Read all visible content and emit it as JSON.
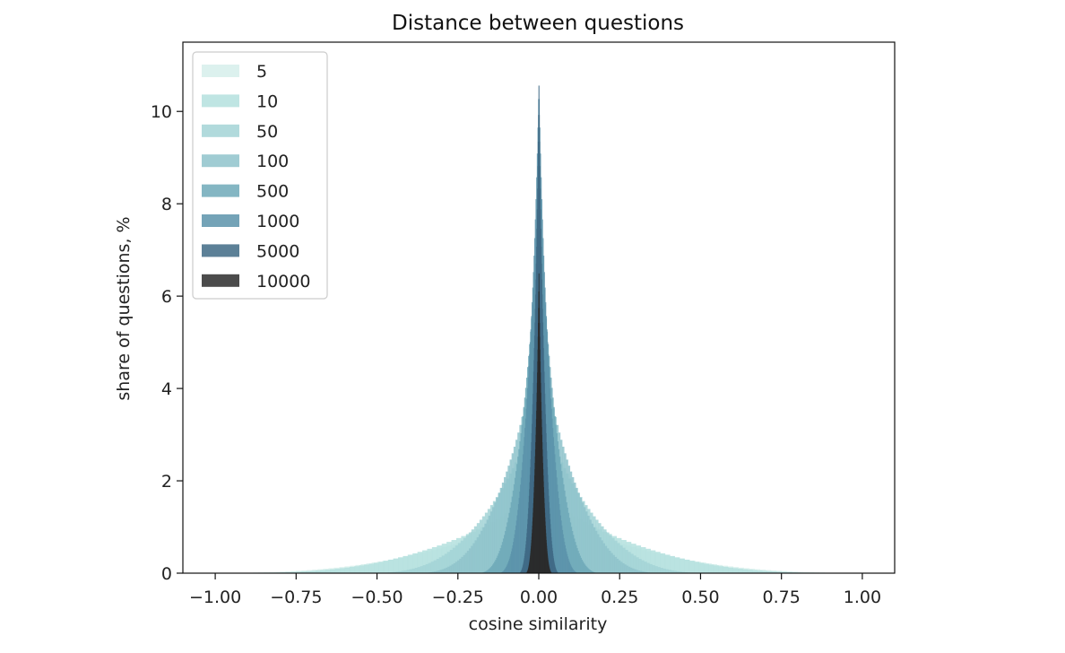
{
  "chart_data": {
    "type": "histogram",
    "title": "Distance between questions",
    "xlabel": "cosine similarity",
    "ylabel": "share of questions, %",
    "xlim": [
      -1.1,
      1.1
    ],
    "ylim": [
      0,
      11.5
    ],
    "xticks": [
      -1.0,
      -0.75,
      -0.5,
      -0.25,
      0.0,
      0.25,
      0.5,
      0.75,
      1.0
    ],
    "xtick_labels": [
      "−1.00",
      "−0.75",
      "−0.50",
      "−0.25",
      "0.00",
      "0.25",
      "0.50",
      "0.75",
      "1.00"
    ],
    "yticks": [
      0,
      2,
      4,
      6,
      8,
      10
    ],
    "ytick_labels": [
      "0",
      "2",
      "4",
      "6",
      "8",
      "10"
    ],
    "grid": false,
    "legend_position": "top-left",
    "distribution_shape": "symmetric peak centered at 0; narrower and taller as number of dimensions grows",
    "series": [
      {
        "name": "5",
        "color": "#d6eeeb",
        "peak_percent": 1.5,
        "x_range": [
          -1.0,
          1.0
        ]
      },
      {
        "name": "10",
        "color": "#b4e0de",
        "peak_percent": 1.9,
        "x_range": [
          -0.9,
          0.9
        ]
      },
      {
        "name": "50",
        "color": "#a3d3d6",
        "peak_percent": 3.9,
        "x_range": [
          -0.5,
          0.5
        ]
      },
      {
        "name": "100",
        "color": "#8fc3cb",
        "peak_percent": 5.5,
        "x_range": [
          -0.36,
          0.36
        ]
      },
      {
        "name": "500",
        "color": "#6ea9b9",
        "peak_percent": 8.5,
        "x_range": [
          -0.18,
          0.18
        ]
      },
      {
        "name": "1000",
        "color": "#5c93aa",
        "peak_percent": 10.6,
        "x_range": [
          -0.12,
          0.12
        ]
      },
      {
        "name": "5000",
        "color": "#3f6a85",
        "peak_percent": 10.9,
        "x_range": [
          -0.06,
          0.06
        ]
      },
      {
        "name": "10000",
        "color": "#2b2b2b",
        "peak_percent": 6.7,
        "x_range": [
          -0.04,
          0.04
        ]
      }
    ]
  }
}
